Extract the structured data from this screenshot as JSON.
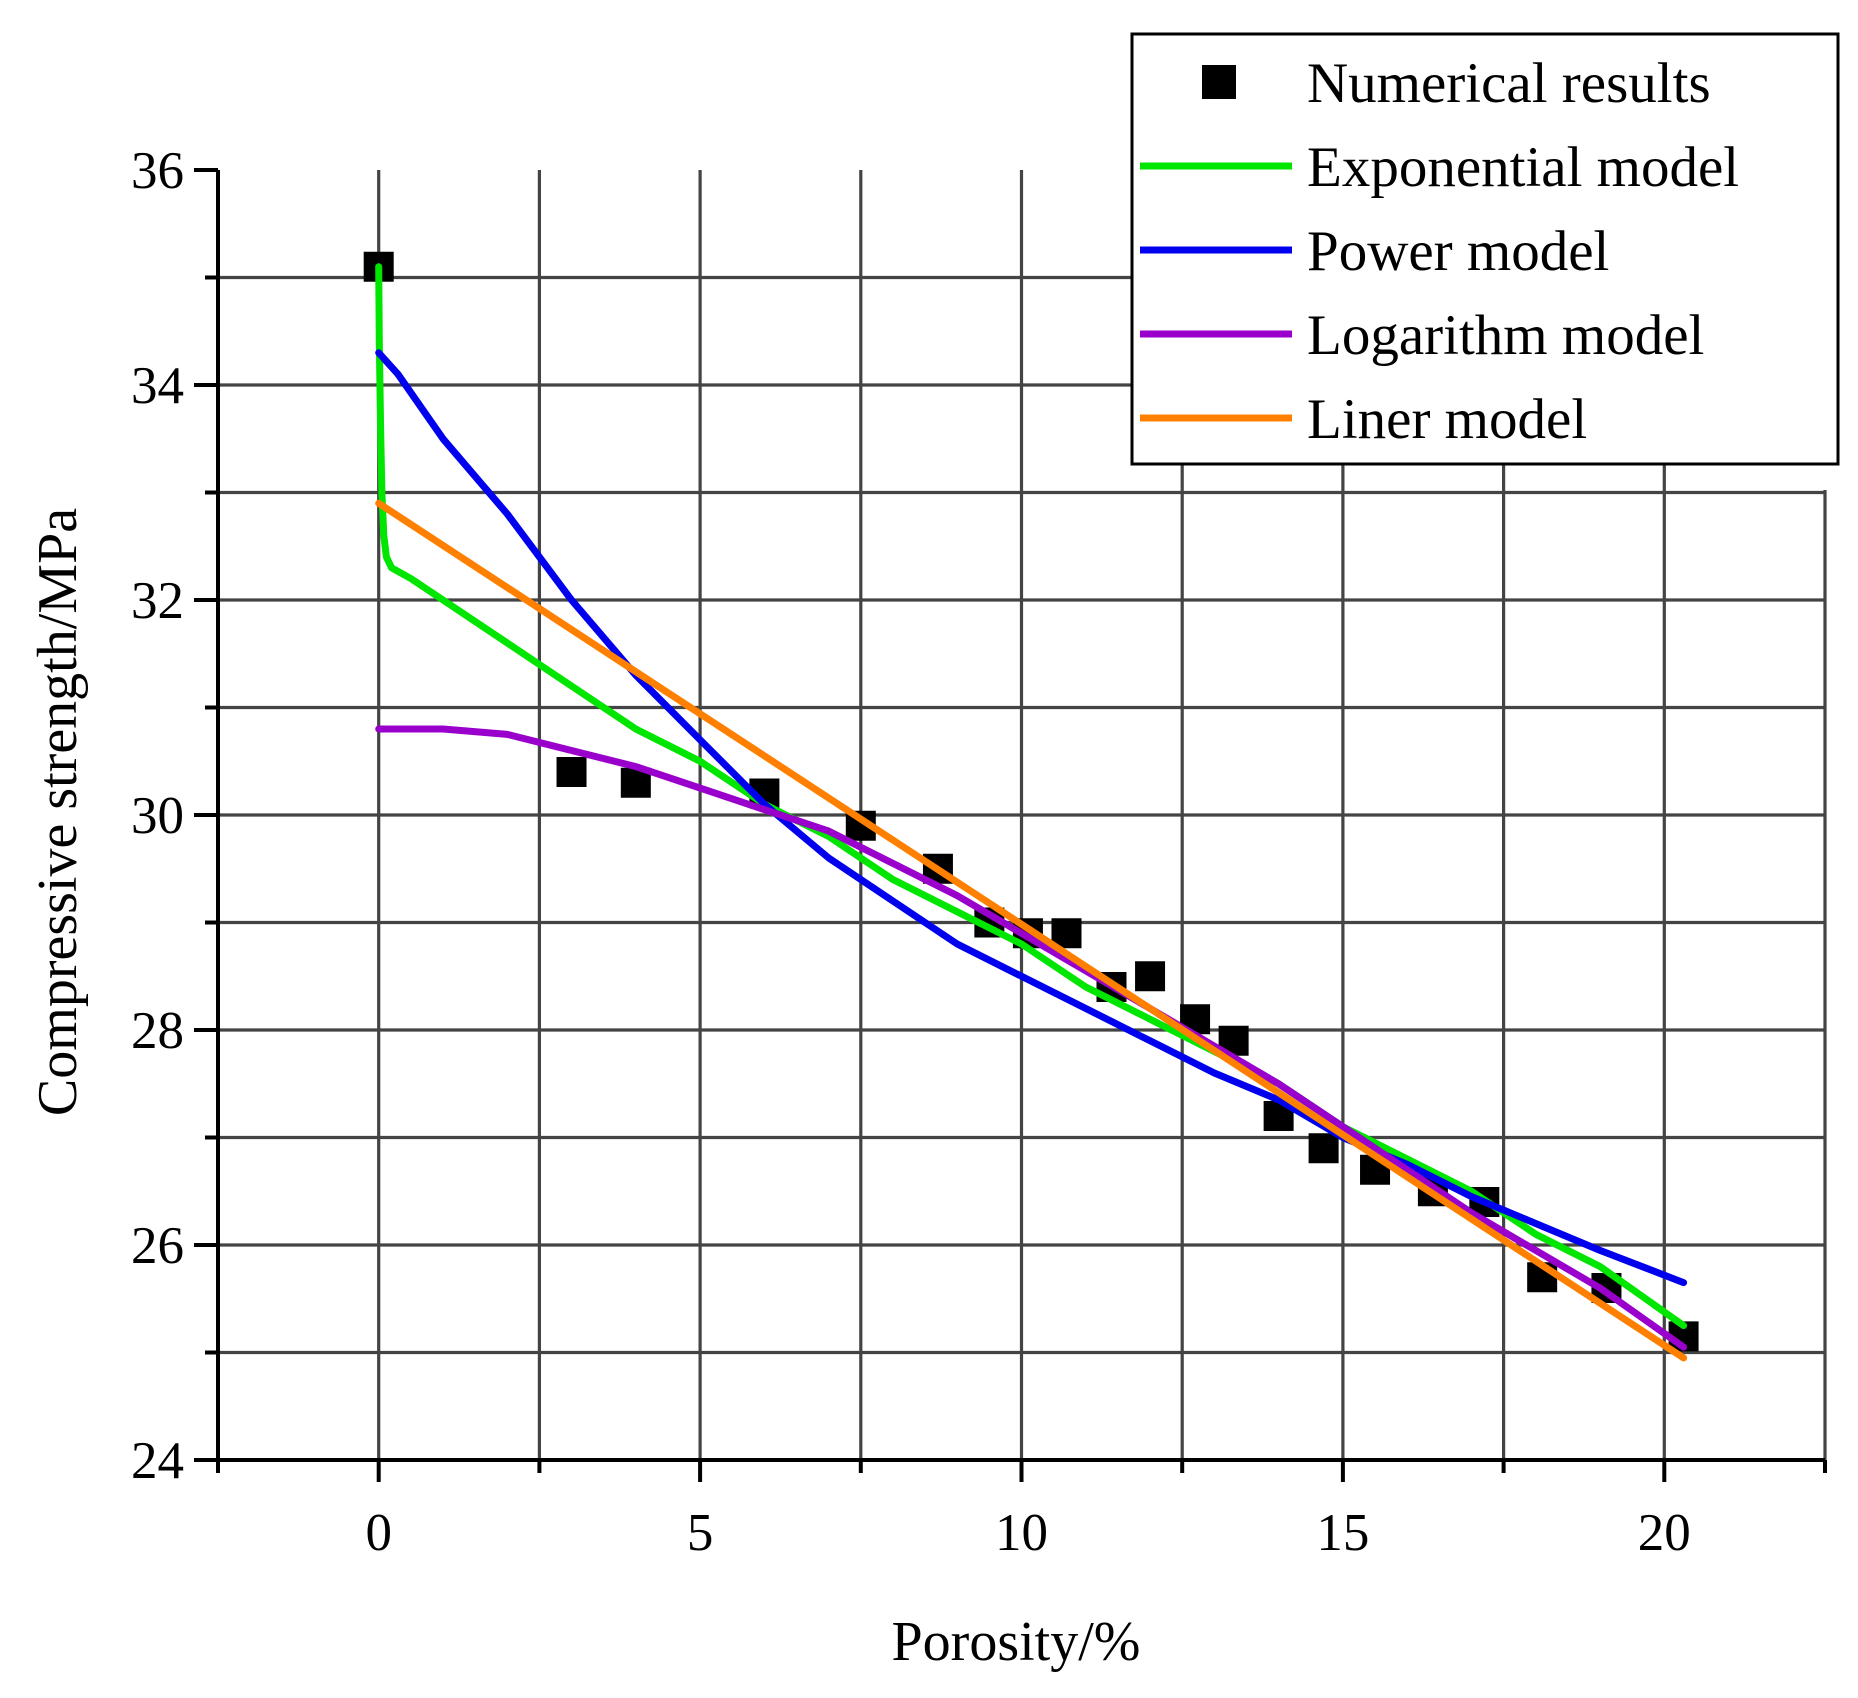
{
  "chart_data": {
    "type": "scatter",
    "title": "",
    "xlabel": "Porosity/%",
    "ylabel": "Compressive strength/MPa",
    "xlim": [
      -2.5,
      22.5
    ],
    "ylim": [
      24,
      36
    ],
    "x_ticks": [
      0,
      5,
      10,
      15,
      20
    ],
    "x_tick_labels": [
      "0",
      "5",
      "10",
      "15",
      "20"
    ],
    "x_minor_ticks": [
      -2.5,
      2.5,
      7.5,
      12.5,
      17.5,
      22.5
    ],
    "y_ticks": [
      24,
      26,
      28,
      30,
      32,
      34,
      36
    ],
    "y_tick_labels": [
      "24",
      "26",
      "28",
      "30",
      "32",
      "34",
      "36"
    ],
    "y_minor_ticks": [
      25,
      27,
      29,
      31,
      33,
      35
    ],
    "grid": true,
    "legend_position": "top-right",
    "series": [
      {
        "name": "Numerical results",
        "kind": "marker",
        "color": "#000000",
        "x": [
          0,
          3,
          4,
          6,
          7.5,
          8.7,
          9.5,
          10.1,
          10.7,
          11.4,
          12.0,
          12.7,
          13.3,
          14.0,
          14.7,
          15.5,
          16.4,
          17.2,
          18.1,
          19.1,
          20.3
        ],
        "y": [
          35.1,
          30.4,
          30.3,
          30.2,
          29.9,
          29.5,
          29.0,
          28.9,
          28.9,
          28.4,
          28.5,
          28.1,
          27.9,
          27.2,
          26.9,
          26.7,
          26.5,
          26.4,
          25.7,
          25.6,
          25.15
        ]
      },
      {
        "name": "Exponential model",
        "kind": "line",
        "color": "#00e600",
        "x": [
          0,
          0.01,
          0.03,
          0.05,
          0.08,
          0.12,
          0.2,
          0.5,
          1,
          2,
          3,
          4,
          5,
          6,
          7,
          8,
          9,
          10,
          11,
          12,
          13,
          14,
          15,
          16,
          17,
          18,
          19,
          20.3
        ],
        "y": [
          35.1,
          34.4,
          33.6,
          33.0,
          32.6,
          32.4,
          32.3,
          32.2,
          32.0,
          31.6,
          31.2,
          30.8,
          30.5,
          30.1,
          29.8,
          29.4,
          29.1,
          28.8,
          28.4,
          28.1,
          27.8,
          27.5,
          27.1,
          26.8,
          26.5,
          26.1,
          25.8,
          25.25
        ]
      },
      {
        "name": "Power model",
        "kind": "line",
        "color": "#0000ee",
        "x": [
          0,
          0.3,
          1,
          2,
          3,
          4,
          5,
          6,
          7,
          8,
          9,
          10,
          11,
          12,
          13,
          14,
          15,
          16,
          17,
          18,
          19,
          20.3
        ],
        "y": [
          34.3,
          34.1,
          33.5,
          32.8,
          32.0,
          31.3,
          30.7,
          30.1,
          29.6,
          29.2,
          28.8,
          28.5,
          28.2,
          27.9,
          27.6,
          27.35,
          27.0,
          26.75,
          26.45,
          26.2,
          25.95,
          25.65
        ]
      },
      {
        "name": "Logarithm model",
        "kind": "line",
        "color": "#9900cc",
        "x": [
          0,
          1,
          2,
          3,
          4,
          5,
          6,
          7,
          8,
          9,
          10,
          11,
          12,
          13,
          14,
          15,
          16,
          17,
          18,
          19,
          20.3
        ],
        "y": [
          30.8,
          30.8,
          30.75,
          30.6,
          30.45,
          30.25,
          30.05,
          29.85,
          29.55,
          29.25,
          28.9,
          28.55,
          28.2,
          27.85,
          27.5,
          27.1,
          26.7,
          26.3,
          25.95,
          25.6,
          25.05
        ]
      },
      {
        "name": "Liner model",
        "kind": "line",
        "color": "#ff8000",
        "x": [
          0,
          20.3
        ],
        "y": [
          32.9,
          24.95
        ]
      }
    ]
  }
}
